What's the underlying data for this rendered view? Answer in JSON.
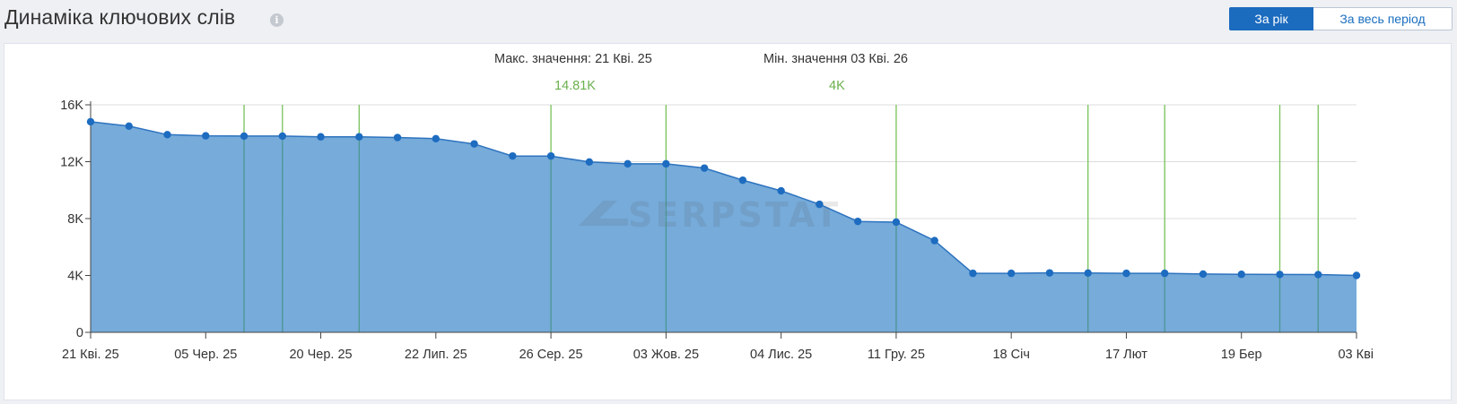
{
  "header": {
    "title": "Динаміка ключових слів",
    "info_icon": "info-icon",
    "info_glyph": "i"
  },
  "period_toggle": {
    "year_label": "За рік",
    "all_label": "За весь період",
    "active": "year"
  },
  "summary": {
    "max_label": "Макс. значення: 21 Кві. 25",
    "max_value": "14.81K",
    "min_label": "Мін. значення 03 Кві. 26",
    "min_value": "4K"
  },
  "watermark": "SERPSTAT",
  "colors": {
    "accent": "#1b6bbf",
    "area_fill": "#6fa6d8",
    "line": "#2d73bf",
    "point": "#1d6cc0",
    "marker_line": "#77c25a",
    "positive_text": "#6ab04c"
  },
  "chart_data": {
    "type": "area",
    "title": "",
    "xlabel": "",
    "ylabel": "",
    "ylim": [
      0,
      16000
    ],
    "y_ticks": [
      {
        "value": 0,
        "label": "0"
      },
      {
        "value": 4000,
        "label": "4K"
      },
      {
        "value": 8000,
        "label": "8K"
      },
      {
        "value": 12000,
        "label": "12K"
      },
      {
        "value": 16000,
        "label": "16K"
      }
    ],
    "x_tick_labels": [
      {
        "index": 0,
        "label": "21 Кві. 25"
      },
      {
        "index": 3,
        "label": "05 Чер. 25"
      },
      {
        "index": 6,
        "label": "20 Чер. 25"
      },
      {
        "index": 9,
        "label": "22 Лип. 25"
      },
      {
        "index": 12,
        "label": "26 Сер. 25"
      },
      {
        "index": 15,
        "label": "03 Жов. 25"
      },
      {
        "index": 18,
        "label": "04 Лис. 25"
      },
      {
        "index": 21,
        "label": "11 Гру. 25"
      },
      {
        "index": 24,
        "label": "18 Січ"
      },
      {
        "index": 27,
        "label": "17 Лют"
      },
      {
        "index": 30,
        "label": "19 Бер"
      },
      {
        "index": 33,
        "label": "03 Кві"
      }
    ],
    "series": [
      {
        "values": [
          14810,
          14500,
          13900,
          13820,
          13800,
          13800,
          13750,
          13750,
          13700,
          13620,
          13250,
          12400,
          12400,
          11980,
          11850,
          11850,
          11550,
          10700,
          9950,
          9000,
          7800,
          7750,
          6450,
          4150,
          4150,
          4180,
          4170,
          4150,
          4150,
          4100,
          4080,
          4070,
          4060,
          4000
        ]
      }
    ],
    "marker_indices": [
      4,
      5,
      7,
      12,
      15,
      21,
      26,
      28,
      31,
      32
    ],
    "grid": true,
    "legend": "none"
  }
}
